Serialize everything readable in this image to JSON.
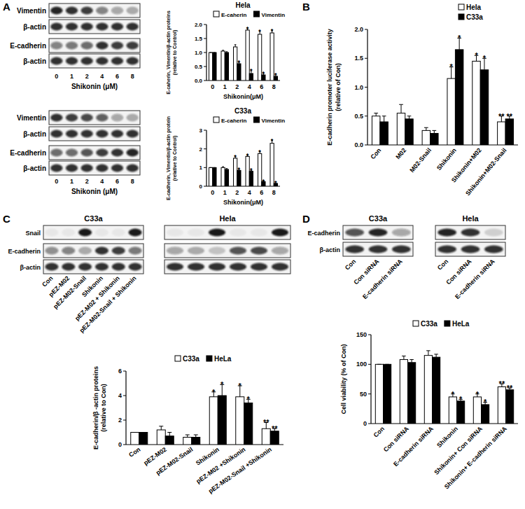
{
  "panel_labels": [
    "A",
    "B",
    "C",
    "D"
  ],
  "chart_data": [
    {
      "type": "bar",
      "title": "Hela",
      "categories": [
        "0",
        "1",
        "2",
        "4",
        "6",
        "8"
      ],
      "xlabel": "Shikonin(μM)",
      "ylabel": [
        "E-caherin, Vimentin/β-actin proteins",
        "(relative to Control)"
      ],
      "ylim": [
        0,
        2
      ],
      "yticks": [
        {
          "value": 0,
          "label": "0.0"
        },
        0.5,
        {
          "value": 1,
          "label": "1.0"
        },
        1.5,
        {
          "value": 2,
          "label": "2.0"
        }
      ],
      "legend": "top",
      "grid": false,
      "series": [
        {
          "name": "E-caherin",
          "color": "#ffffff",
          "values": [
            1.0,
            1.05,
            1.2,
            1.8,
            1.65,
            1.7
          ],
          "errors": [
            0,
            0.03,
            0.08,
            0.05,
            0.1,
            0.08
          ],
          "significance": [
            null,
            null,
            null,
            "*",
            "*",
            "*"
          ]
        },
        {
          "name": "Vimentin",
          "color": "#000000",
          "values": [
            1.0,
            1.0,
            0.6,
            0.25,
            0.2,
            0.15
          ],
          "errors": [
            0,
            0.03,
            0.05,
            0.1,
            0.05,
            0.05
          ],
          "significance": [
            null,
            null,
            "*",
            "*",
            "*",
            "*"
          ]
        }
      ]
    },
    {
      "type": "bar",
      "title": "C33a",
      "categories": [
        "0",
        "1",
        "2",
        "4",
        "6",
        "8"
      ],
      "xlabel": "Shikonin(μM)",
      "ylabel": [
        "E-cadherin, Vimentin/β-actin protein",
        "(relative to Control)"
      ],
      "ylim": [
        0,
        3
      ],
      "yticks": [
        0,
        1,
        2,
        3
      ],
      "legend": "top",
      "grid": false,
      "series": [
        {
          "name": "E-caherin",
          "color": "#ffffff",
          "values": [
            1.0,
            1.0,
            1.5,
            1.6,
            1.75,
            2.3
          ],
          "errors": [
            0,
            0.05,
            0.08,
            0.05,
            0.1,
            0.15
          ],
          "significance": [
            null,
            null,
            "*",
            "*",
            "*",
            "*"
          ]
        },
        {
          "name": "Vimentin",
          "color": "#000000",
          "values": [
            1.0,
            0.9,
            0.85,
            0.8,
            0.25,
            0.15
          ],
          "errors": [
            0,
            0.05,
            0.05,
            0.05,
            0.03,
            0.03
          ],
          "significance": [
            null,
            null,
            "*",
            "*",
            "*",
            "*"
          ]
        }
      ]
    },
    {
      "type": "bar",
      "categories": [
        "Con",
        "M02",
        "M02-Snail",
        "Shikonin",
        "Shikonin+M02",
        "Shikonin+M02-Snail"
      ],
      "ylabel": [
        "E-cadherin promoter luciferase activity",
        "(relative of Con)"
      ],
      "ylim": [
        0,
        2
      ],
      "yticks": [
        {
          "value": 0,
          "label": "0.0"
        },
        0.5,
        {
          "value": 1,
          "label": "1.0"
        },
        1.5,
        {
          "value": 2,
          "label": "2.0"
        }
      ],
      "legend": "top-right",
      "grid": false,
      "series": [
        {
          "name": "Hela",
          "color": "#ffffff",
          "values": [
            0.5,
            0.55,
            0.25,
            1.15,
            1.45,
            0.4
          ],
          "errors": [
            0.05,
            0.15,
            0.05,
            0.2,
            0.1,
            0.1
          ],
          "significance": [
            null,
            null,
            null,
            "*",
            "*",
            "**"
          ]
        },
        {
          "name": "C33a",
          "color": "#000000",
          "values": [
            0.4,
            0.45,
            0.2,
            1.65,
            1.3,
            0.45
          ],
          "errors": [
            0.1,
            0.05,
            0.05,
            0.2,
            0.2,
            0.05
          ],
          "significance": [
            null,
            null,
            null,
            "*",
            "*",
            "**"
          ]
        }
      ]
    },
    {
      "type": "bar",
      "categories": [
        "Con",
        "pEZ-M02",
        "pEZ-M02-Snail",
        "Shikonin",
        "pEZ-M02 +Shikonin",
        "pEZ-M02-Snail +Shikonin"
      ],
      "ylabel": [
        "E-cadherin/β -actin proteins",
        "(relative to Con)"
      ],
      "ylim": [
        0,
        6
      ],
      "yticks": [
        0,
        2,
        4,
        6
      ],
      "legend": "top",
      "grid": false,
      "series": [
        {
          "name": "C33a",
          "color": "#ffffff",
          "values": [
            1.0,
            1.2,
            0.6,
            3.9,
            3.9,
            1.3
          ],
          "errors": [
            0,
            0.3,
            0.2,
            0.4,
            0.9,
            0.5
          ],
          "significance": [
            null,
            null,
            null,
            "*",
            "*",
            "**"
          ]
        },
        {
          "name": "HeLa",
          "color": "#000000",
          "values": [
            1.0,
            0.7,
            0.6,
            4.0,
            3.4,
            1.1
          ],
          "errors": [
            0,
            0.3,
            0.2,
            0.9,
            0.3,
            0.2
          ],
          "significance": [
            null,
            null,
            null,
            "*",
            "*",
            "**"
          ]
        }
      ]
    },
    {
      "type": "bar",
      "categories": [
        "Con",
        "Con siRNA",
        "E-cadherin siRNA",
        "Shikonin",
        "Shikonin+ Con siRNA",
        "Shikonin+ E-cadherin siRNA"
      ],
      "ylabel": [
        "Cell viability (% of Con)"
      ],
      "ylim": [
        0,
        150
      ],
      "yticks": [
        0,
        50,
        100,
        150
      ],
      "legend": "top",
      "grid": false,
      "series": [
        {
          "name": "C33a",
          "color": "#ffffff",
          "values": [
            100,
            108,
            115,
            45,
            45,
            62
          ],
          "errors": [
            0,
            6,
            8,
            5,
            5,
            5
          ],
          "significance": [
            null,
            null,
            null,
            "*",
            "*",
            "**"
          ]
        },
        {
          "name": "HeLa",
          "color": "#000000",
          "values": [
            100,
            103,
            112,
            38,
            32,
            57
          ],
          "errors": [
            0,
            5,
            5,
            3,
            4,
            3
          ],
          "significance": [
            null,
            null,
            null,
            "*",
            "*",
            "**"
          ]
        }
      ]
    }
  ],
  "blots": [
    {
      "lanes": [
        "0",
        "1",
        "2",
        "4",
        "6",
        "8"
      ],
      "lane_axis_label": "Shikonin (μM)",
      "rows": [
        {
          "label": "Vimentin",
          "bands": [
            0.9,
            0.85,
            0.8,
            0.5,
            0.35,
            0.3
          ]
        },
        {
          "label": "β-actin",
          "bands": [
            0.85,
            0.85,
            0.85,
            0.85,
            0.85,
            0.85
          ]
        },
        {
          "label": "E-cadherin",
          "bands": [
            0.5,
            0.55,
            0.6,
            0.85,
            0.8,
            0.8
          ]
        },
        {
          "label": "β-actin",
          "bands": [
            0.85,
            0.85,
            0.85,
            0.85,
            0.85,
            0.85
          ]
        }
      ]
    },
    {
      "lanes": [
        "0",
        "1",
        "2",
        "4",
        "6",
        "8"
      ],
      "lane_axis_label": "Shikonin (μM)",
      "rows": [
        {
          "label": "Vimentin",
          "bands": [
            0.85,
            0.8,
            0.75,
            0.65,
            0.35,
            0.3
          ]
        },
        {
          "label": "β-actin",
          "bands": [
            0.85,
            0.85,
            0.85,
            0.85,
            0.85,
            0.85
          ]
        },
        {
          "label": "E-cadherin",
          "bands": [
            0.6,
            0.6,
            0.7,
            0.8,
            0.85,
            0.9
          ]
        },
        {
          "label": "β-actin",
          "bands": [
            0.85,
            0.85,
            0.85,
            0.85,
            0.85,
            0.85
          ]
        }
      ]
    },
    {
      "title": "C33a",
      "lanes": [
        "Con",
        "pEZ-M02",
        "pEZ-M02-Snail",
        "Shikonin",
        "pEZ-M02 + Shikonin",
        "pEZ-M02-Snail + Shikonin"
      ],
      "rows": [
        {
          "label": "Snail",
          "bands": [
            0.05,
            0.05,
            0.95,
            0.05,
            0.05,
            0.95
          ]
        },
        {
          "label": "E-cadherin",
          "bands": [
            0.45,
            0.5,
            0.3,
            0.85,
            0.8,
            0.55
          ]
        },
        {
          "label": "β-actin",
          "bands": [
            0.85,
            0.85,
            0.85,
            0.85,
            0.85,
            0.85
          ]
        }
      ]
    },
    {
      "title": "Hela",
      "rows": [
        {
          "bands": [
            0.05,
            0.05,
            0.95,
            0.05,
            0.05,
            0.95
          ]
        },
        {
          "bands": [
            0.35,
            0.3,
            0.2,
            0.7,
            0.75,
            0.35
          ]
        },
        {
          "bands": [
            0.85,
            0.85,
            0.85,
            0.85,
            0.85,
            0.85
          ]
        }
      ]
    },
    {
      "title": "C33a",
      "lanes": [
        "Con",
        "Con siRNA",
        "E-cadherin siRNA"
      ],
      "rows": [
        {
          "label": "E-cadherin",
          "bands": [
            0.7,
            0.9,
            0.35
          ]
        },
        {
          "label": "β-actin",
          "bands": [
            0.85,
            0.85,
            0.85
          ]
        }
      ]
    },
    {
      "title": "Hela",
      "lanes": [
        "Con",
        "Con siRNA",
        "E-cadherin siRNA"
      ],
      "rows": [
        {
          "bands": [
            0.9,
            0.85,
            0.15
          ]
        },
        {
          "bands": [
            0.85,
            0.85,
            0.85
          ]
        }
      ]
    }
  ]
}
